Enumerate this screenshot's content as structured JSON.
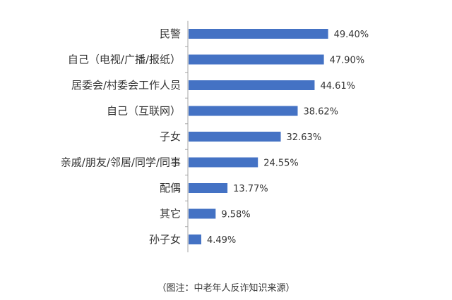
{
  "chart_data": {
    "type": "bar",
    "orientation": "horizontal",
    "categories": [
      "民警",
      "自己（电视/广播/报纸）",
      "居委会/村委会工作人员",
      "自己（互联网）",
      "子女",
      "亲戚/朋友/邻居/同学/同事",
      "配偶",
      "其它",
      "孙子女"
    ],
    "values": [
      49.4,
      47.9,
      44.61,
      38.62,
      32.63,
      24.55,
      13.77,
      9.58,
      4.49
    ],
    "value_labels": [
      "49.40%",
      "47.90%",
      "44.61%",
      "38.62%",
      "32.63%",
      "24.55%",
      "13.77%",
      "9.58%",
      "4.49%"
    ],
    "unit": "%",
    "bar_color": "#4472C4",
    "axis_line_color": "#a6a6a6",
    "grid": false,
    "legend": "none"
  },
  "caption": "（图注：中老年人反诈知识来源）"
}
